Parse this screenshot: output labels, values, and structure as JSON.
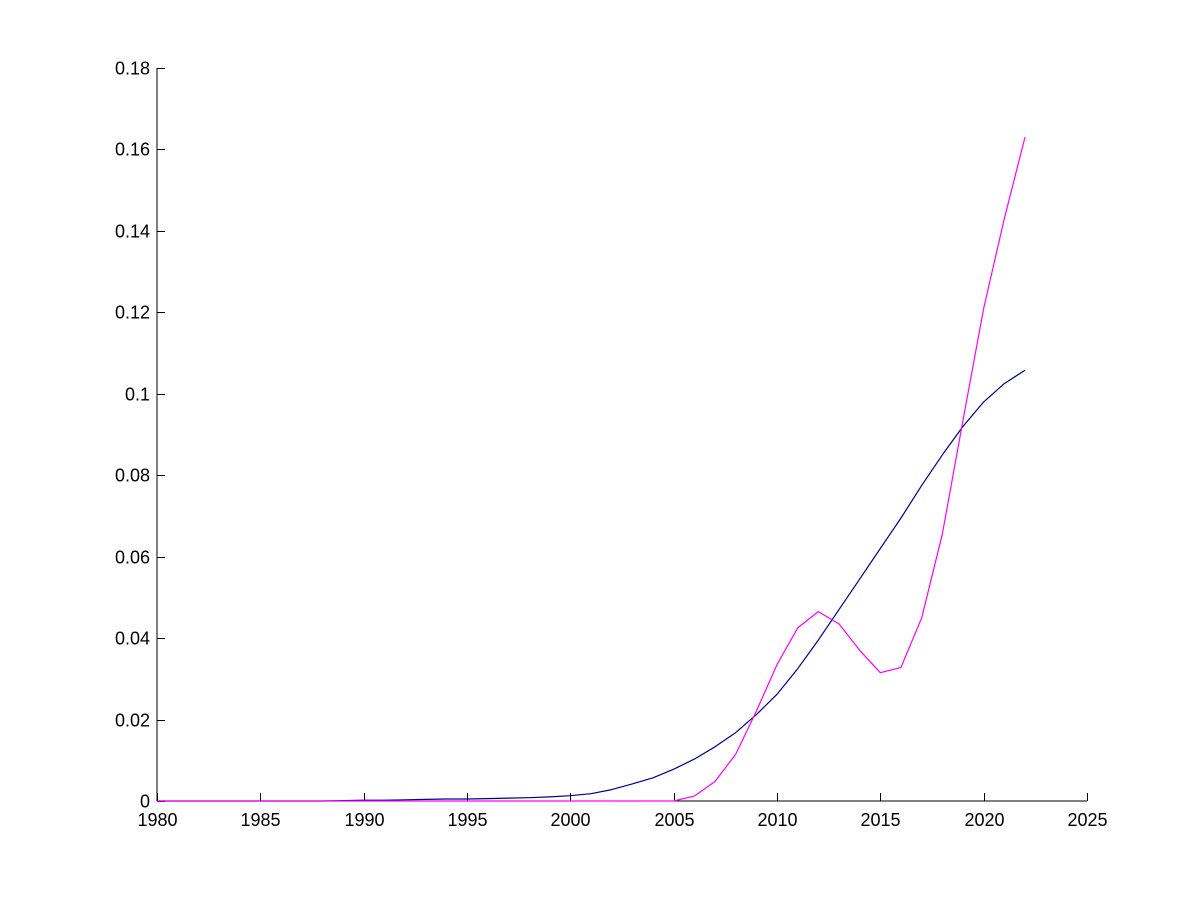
{
  "chart_data": {
    "type": "line",
    "title": "",
    "xlabel": "",
    "ylabel": "",
    "xlim": [
      1980,
      2025
    ],
    "ylim": [
      0,
      0.18
    ],
    "x_ticks": [
      1980,
      1985,
      1990,
      1995,
      2000,
      2005,
      2010,
      2015,
      2020,
      2025
    ],
    "x_tick_labels": [
      "1980",
      "1985",
      "1990",
      "1995",
      "2000",
      "2005",
      "2010",
      "2015",
      "2020",
      "2025"
    ],
    "y_ticks": [
      0,
      0.02,
      0.04,
      0.06,
      0.08,
      0.1,
      0.12,
      0.14,
      0.16,
      0.18
    ],
    "y_tick_labels": [
      "0",
      "0.02",
      "0.04",
      "0.06",
      "0.08",
      "0.1",
      "0.12",
      "0.14",
      "0.16",
      "0.18"
    ],
    "grid": false,
    "legend": "none",
    "series": [
      {
        "color": "#00008b",
        "x": [
          1980,
          1981,
          1982,
          1983,
          1984,
          1985,
          1986,
          1987,
          1988,
          1989,
          1990,
          1991,
          1992,
          1993,
          1994,
          1995,
          1996,
          1997,
          1998,
          1999,
          2000,
          2001,
          2002,
          2003,
          2004,
          2005,
          2006,
          2007,
          2008,
          2009,
          2010,
          2011,
          2012,
          2013,
          2014,
          2015,
          2016,
          2017,
          2018,
          2019,
          2020,
          2021,
          2022
        ],
        "y": [
          0,
          0,
          0,
          0,
          0,
          0,
          0,
          0,
          0,
          0.0001,
          0.0002,
          0.0002,
          0.0003,
          0.0004,
          0.0005,
          0.0005,
          0.0006,
          0.0007,
          0.0008,
          0.001,
          0.0013,
          0.0018,
          0.0028,
          0.0042,
          0.0057,
          0.0078,
          0.0103,
          0.0133,
          0.0168,
          0.0212,
          0.0262,
          0.0325,
          0.0395,
          0.047,
          0.0545,
          0.062,
          0.0695,
          0.0775,
          0.085,
          0.092,
          0.098,
          0.1025,
          0.1058
        ]
      },
      {
        "color": "#ff00ff",
        "x": [
          1980,
          1985,
          1990,
          1995,
          2000,
          2004,
          2005,
          2006,
          2007,
          2008,
          2009,
          2010,
          2011,
          2012,
          2013,
          2014,
          2015,
          2016,
          2017,
          2018,
          2019,
          2020,
          2021,
          2022
        ],
        "y": [
          0,
          0,
          0,
          0,
          0,
          0,
          0,
          0.0012,
          0.0048,
          0.0115,
          0.022,
          0.0335,
          0.0425,
          0.0465,
          0.0435,
          0.037,
          0.0315,
          0.0328,
          0.045,
          0.0655,
          0.0935,
          0.121,
          0.143,
          0.163
        ]
      }
    ]
  }
}
